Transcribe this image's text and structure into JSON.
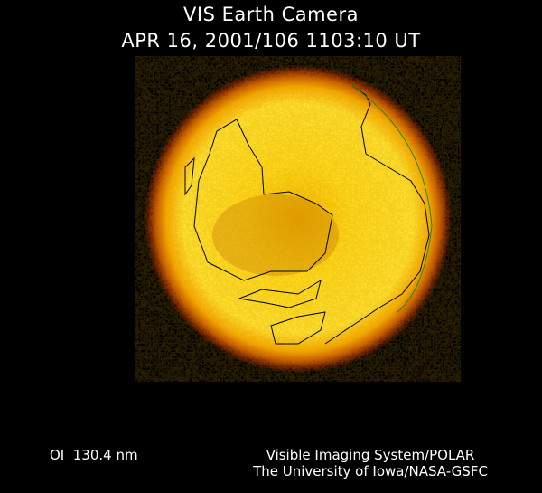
{
  "header": {
    "title": "VIS Earth Camera",
    "timestamp": "APR 16, 2001/106 1103:10 UT"
  },
  "footer": {
    "wavelength": "OI  130.4 nm",
    "credit_line1": "Visible Imaging System/POLAR",
    "credit_line2": "The University of Iowa/NASA-GSFC"
  },
  "colors": {
    "background": "#000000",
    "disk_core": "#ffe020",
    "disk_mid": "#f7b400",
    "disk_edge": "#8a1a00",
    "coastline": "#000000",
    "terminator": "#1a8a2a"
  }
}
